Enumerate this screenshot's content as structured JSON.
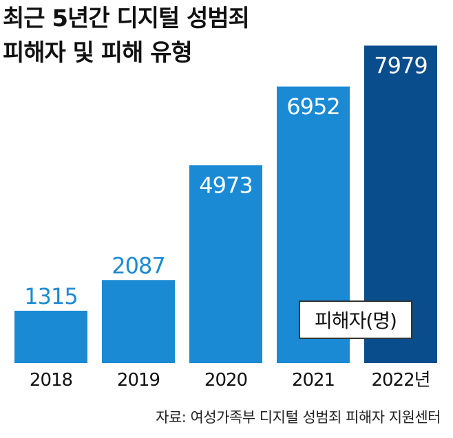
{
  "title_line1": "최근 5년간 디지털 성범죄",
  "title_line2": "피해자 및 피해 유형",
  "source": "자료: 여성가족부 디지털 성범죄 피해자 지원센터",
  "colors": {
    "bar": "#1a8ad4",
    "bar_highlight": "#0a4d8c",
    "value_text": "#1a8ad4",
    "value_text_inside": "#ffffff"
  },
  "chart_data": {
    "type": "bar",
    "categories": [
      "2018",
      "2019",
      "2020",
      "2021",
      "2022년"
    ],
    "values": [
      1315,
      2087,
      4973,
      6952,
      7979
    ],
    "value_labels": [
      "1315",
      "2087",
      "4973",
      "6952",
      "7979"
    ],
    "legend": "피해자(명)",
    "title": "최근 5년간 디지털 성범죄 피해자 및 피해 유형",
    "xlabel": "",
    "ylabel": "",
    "ylim": [
      0,
      8400
    ],
    "grid": false,
    "legend_position": "bottom-right",
    "highlight_index": 4
  }
}
